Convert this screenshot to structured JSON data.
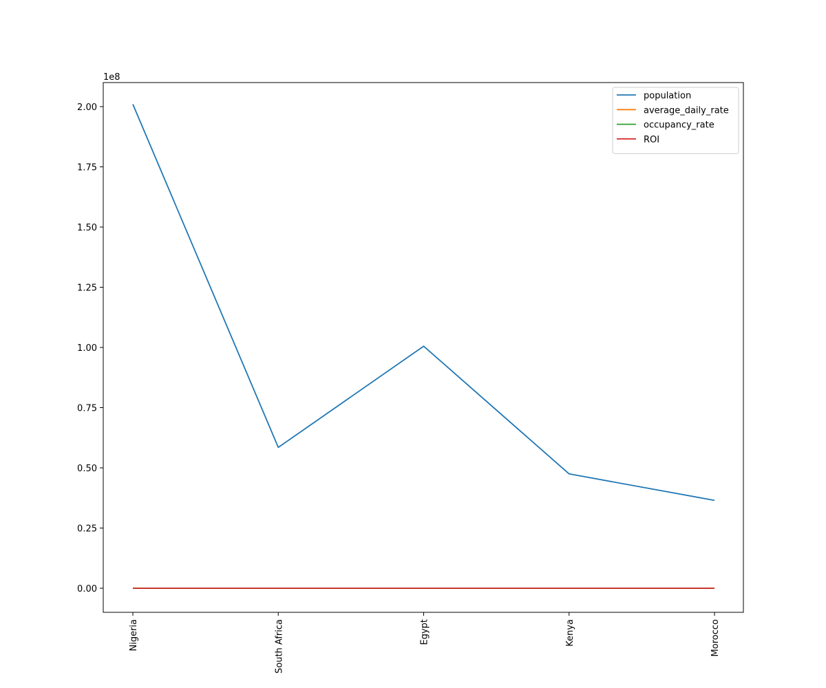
{
  "chart_data": {
    "type": "line",
    "title": "",
    "xlabel": "",
    "ylabel": "",
    "categories": [
      "Nigeria",
      "South Africa",
      "Egypt",
      "Kenya",
      "Morocco"
    ],
    "y_offset_label": "1e8",
    "y_scale": 100000000,
    "ylim": [
      -10000000,
      210000000
    ],
    "yticks": [
      0,
      25000000,
      50000000,
      75000000,
      100000000,
      125000000,
      150000000,
      175000000,
      200000000
    ],
    "ytick_labels": [
      "0.00",
      "0.25",
      "0.50",
      "0.75",
      "1.00",
      "1.25",
      "1.50",
      "1.75",
      "2.00"
    ],
    "grid": false,
    "legend_position": "top-right",
    "series": [
      {
        "name": "population",
        "color": "#1f77b4",
        "values": [
          201000000,
          58500000,
          100500000,
          47500000,
          36500000
        ]
      },
      {
        "name": "average_daily_rate",
        "color": "#ff7f0e",
        "values": [
          0,
          0,
          0,
          0,
          0
        ]
      },
      {
        "name": "occupancy_rate",
        "color": "#2ca02c",
        "values": [
          0,
          0,
          0,
          0,
          0
        ]
      },
      {
        "name": "ROI",
        "color": "#d62728",
        "values": [
          0,
          0,
          0,
          0,
          0
        ]
      }
    ]
  }
}
